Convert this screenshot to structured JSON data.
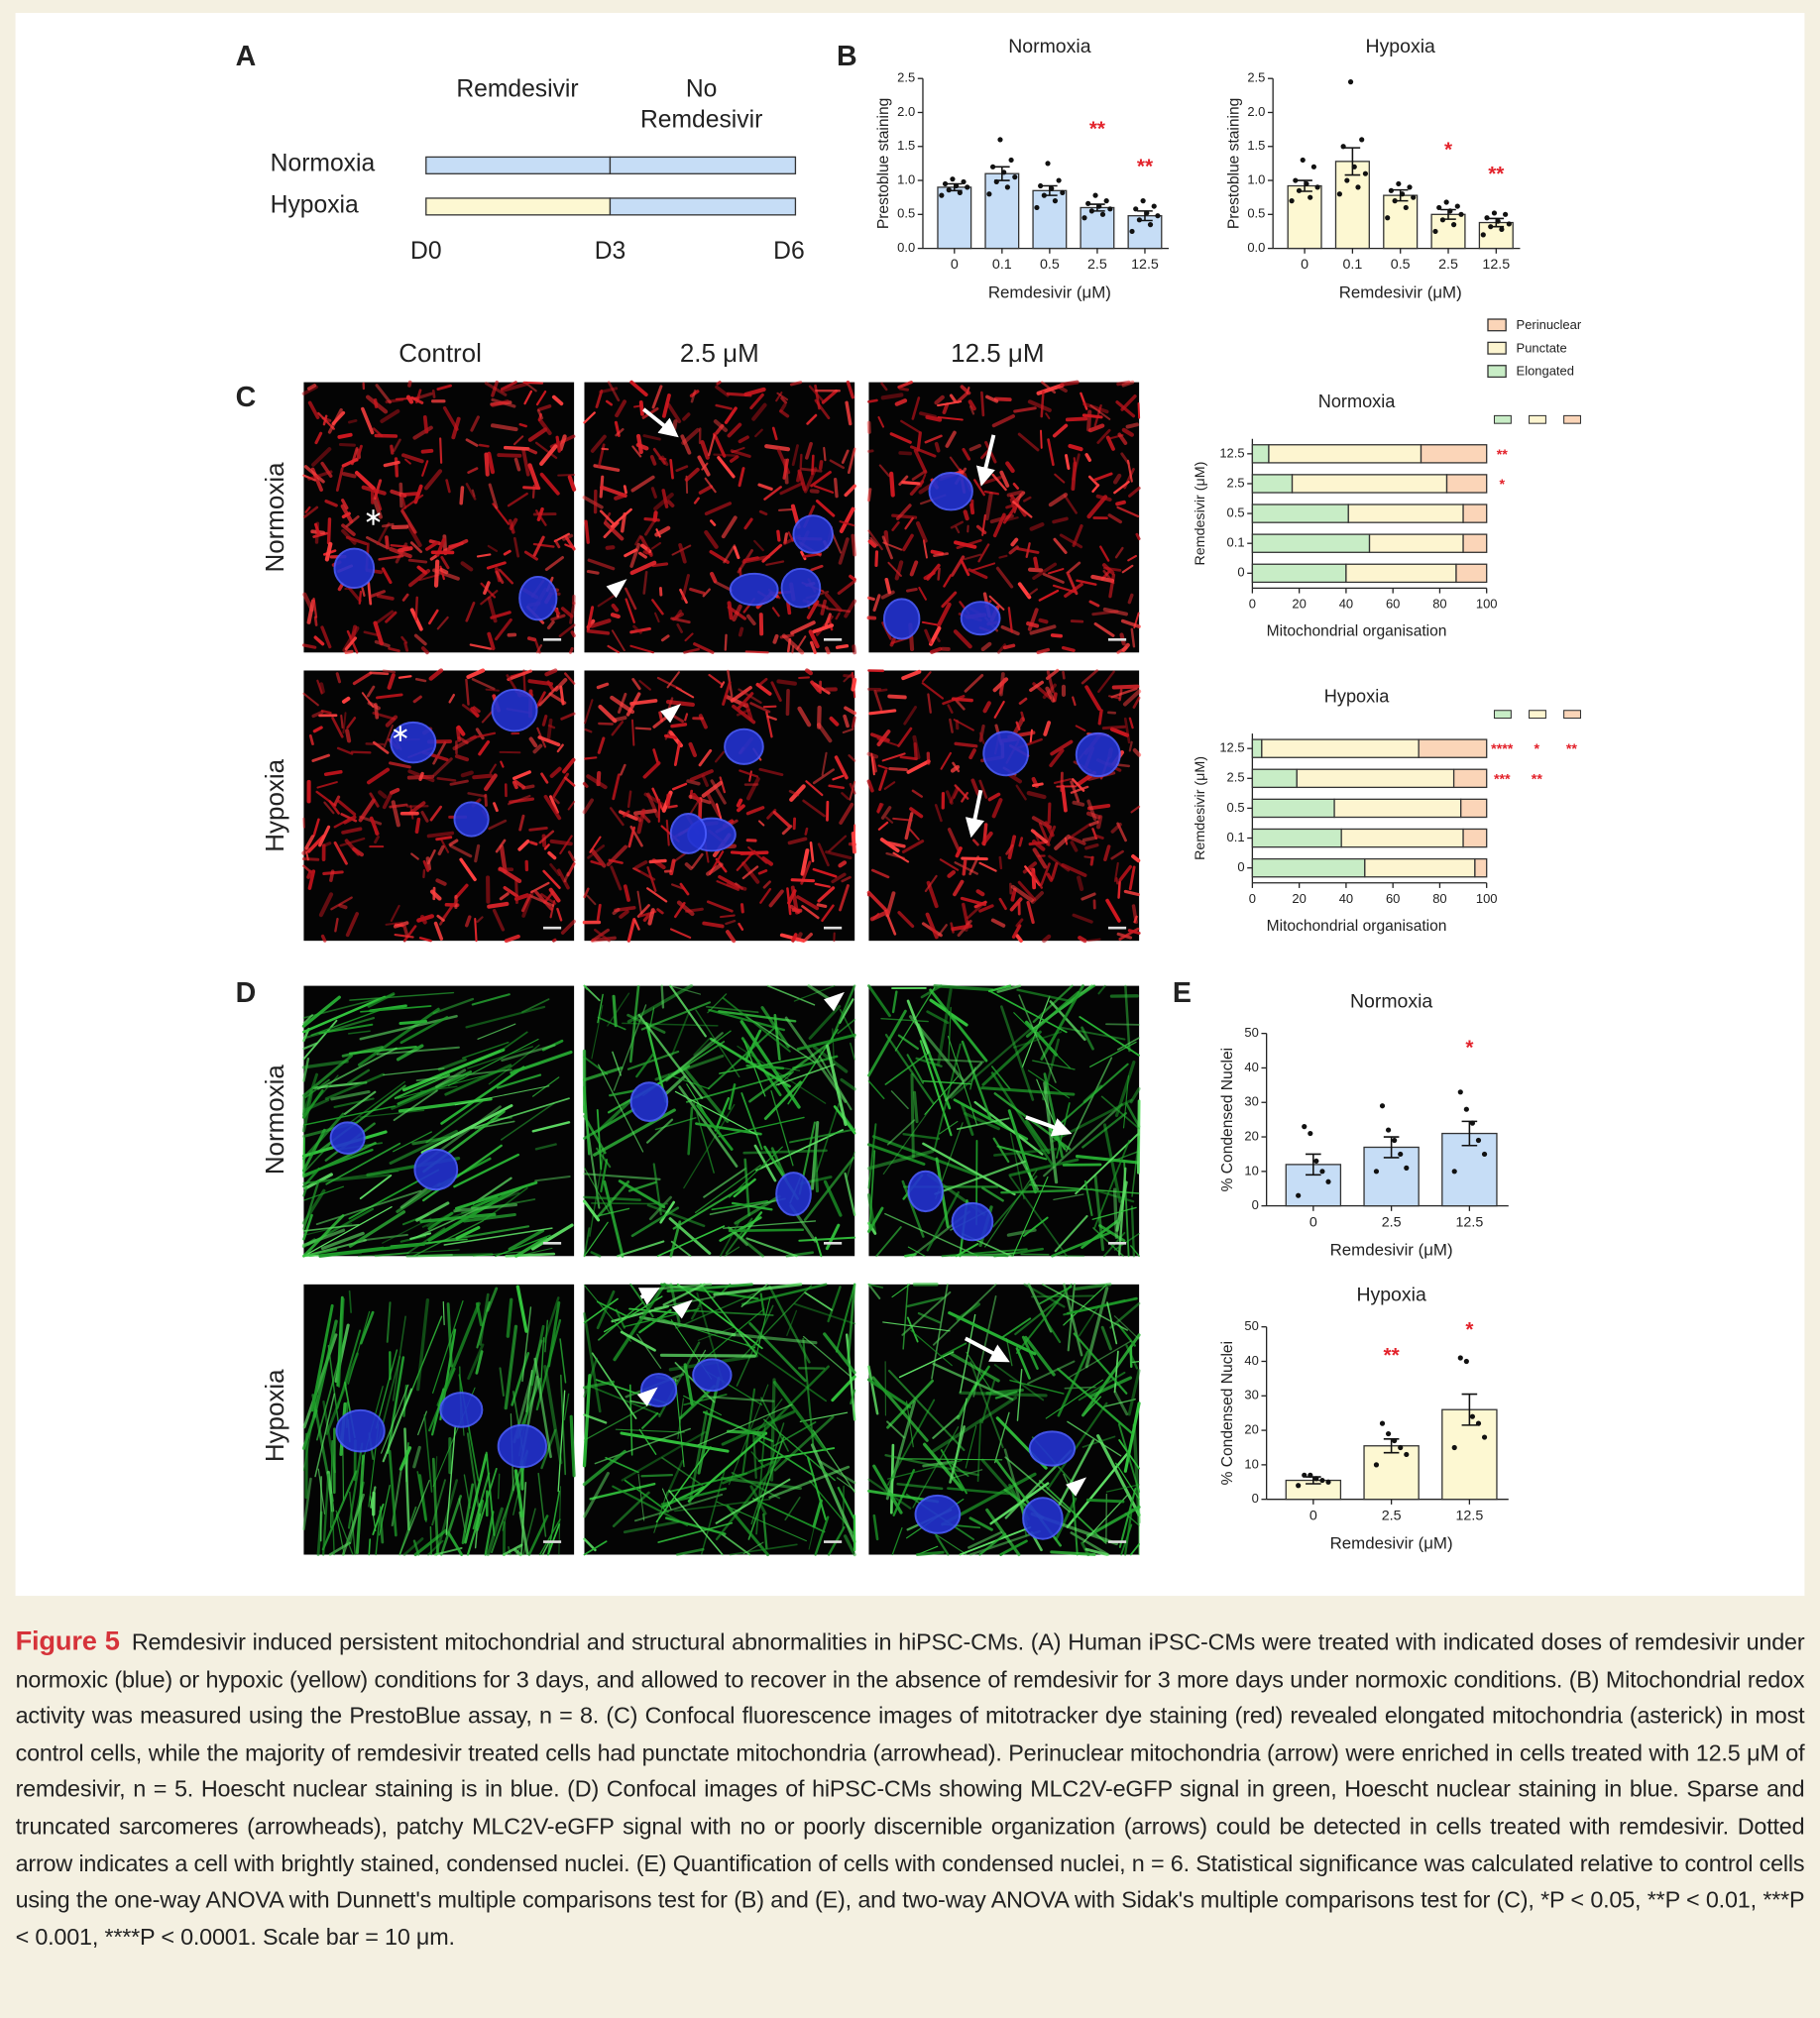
{
  "panel_labels": [
    "A",
    "B",
    "C",
    "D",
    "E"
  ],
  "timeline": {
    "treatment": "Remdesivir",
    "no_treatment": [
      "No",
      "Remdesivir"
    ],
    "conditions": [
      "Normoxia",
      "Hypoxia"
    ],
    "days": [
      "D0",
      "D3",
      "D6"
    ]
  },
  "micrographs": {
    "columns": [
      "Control",
      "2.5 μM",
      "12.5 μM"
    ],
    "rows": [
      "Normoxia",
      "Hypoxia"
    ]
  },
  "chart_data": [
    {
      "type": "bar",
      "title": "Normoxia",
      "categories": [
        "0",
        "0.1",
        "0.5",
        "2.5",
        "12.5"
      ],
      "values": [
        0.9,
        1.1,
        0.85,
        0.6,
        0.48
      ],
      "errors": [
        0.05,
        0.1,
        0.07,
        0.05,
        0.07
      ],
      "points": [
        [
          0.78,
          0.82,
          0.86,
          0.9,
          0.92,
          0.95,
          0.98,
          1.02
        ],
        [
          0.8,
          0.9,
          0.98,
          1.05,
          1.12,
          1.2,
          1.3,
          1.6
        ],
        [
          0.6,
          0.7,
          0.78,
          0.82,
          0.88,
          0.92,
          1.0,
          1.25
        ],
        [
          0.45,
          0.5,
          0.55,
          0.58,
          0.62,
          0.66,
          0.7,
          0.78
        ],
        [
          0.25,
          0.35,
          0.42,
          0.48,
          0.52,
          0.58,
          0.62,
          0.7
        ]
      ],
      "annotations": [
        null,
        null,
        null,
        "**",
        "**"
      ],
      "color": "#c6ddf6",
      "point_color": "#111111",
      "annotation_color": "#e3222b",
      "ylim": [
        0,
        2.5
      ],
      "yticks": [
        {
          "value": 0,
          "label": "0.0"
        },
        0.5,
        {
          "value": 1,
          "label": "1.0"
        },
        1.5,
        {
          "value": 2,
          "label": "2.0"
        },
        2.5
      ],
      "xlabel": "Remdesivir (μM)",
      "ylabel": "Prestoblue staining"
    },
    {
      "type": "bar",
      "title": "Hypoxia",
      "categories": [
        "0",
        "0.1",
        "0.5",
        "2.5",
        "12.5"
      ],
      "values": [
        0.92,
        1.28,
        0.78,
        0.5,
        0.38
      ],
      "errors": [
        0.08,
        0.2,
        0.08,
        0.07,
        0.06
      ],
      "points": [
        [
          0.7,
          0.75,
          0.85,
          0.9,
          0.95,
          1.0,
          1.2,
          1.3
        ],
        [
          0.8,
          0.9,
          1.0,
          1.1,
          1.2,
          1.5,
          1.6,
          2.45
        ],
        [
          0.45,
          0.6,
          0.7,
          0.75,
          0.8,
          0.85,
          0.9,
          0.95
        ],
        [
          0.25,
          0.35,
          0.42,
          0.5,
          0.55,
          0.6,
          0.62,
          0.68
        ],
        [
          0.2,
          0.28,
          0.32,
          0.36,
          0.4,
          0.45,
          0.5,
          0.52
        ]
      ],
      "annotations": [
        null,
        null,
        null,
        "*",
        "**"
      ],
      "color": "#fdf8d2",
      "point_color": "#111111",
      "annotation_color": "#e3222b",
      "ylim": [
        0,
        2.5
      ],
      "yticks": [
        {
          "value": 0,
          "label": "0.0"
        },
        0.5,
        {
          "value": 1,
          "label": "1.0"
        },
        1.5,
        {
          "value": 2,
          "label": "2.0"
        },
        2.5
      ],
      "xlabel": "Remdesivir (μM)",
      "ylabel": "Prestoblue staining"
    },
    {
      "type": "stacked_bar",
      "orientation": "horizontal",
      "title": "Normoxia",
      "categories": [
        "0",
        "0.1",
        "0.5",
        "2.5",
        "12.5"
      ],
      "series": [
        {
          "name": "Elongated",
          "color": "#c8edc6",
          "values": [
            40,
            50,
            41,
            17,
            7
          ],
          "annotations": [
            null,
            null,
            null,
            "*",
            "**"
          ]
        },
        {
          "name": "Punctate",
          "color": "#fdf5d0",
          "values": [
            47,
            40,
            49,
            66,
            65
          ]
        },
        {
          "name": "Perinuclear",
          "color": "#fbd5b8",
          "values": [
            13,
            10,
            10,
            17,
            28
          ]
        }
      ],
      "annotation_color": "#e3222b",
      "legend": "top-right",
      "xlim": [
        0,
        100
      ],
      "xticks": [
        0,
        20,
        40,
        60,
        80,
        100
      ],
      "xlabel": "Mitochondrial organisation",
      "ylabel": "Remdesivir (μM)"
    },
    {
      "type": "stacked_bar",
      "orientation": "horizontal",
      "title": "Hypoxia",
      "categories": [
        "0",
        "0.1",
        "0.5",
        "2.5",
        "12.5"
      ],
      "series": [
        {
          "color": "#c8edc6",
          "values": [
            48,
            38,
            35,
            19,
            4
          ],
          "annotations": [
            null,
            null,
            null,
            "***",
            "****"
          ]
        },
        {
          "color": "#fdf5d0",
          "values": [
            47,
            52,
            54,
            67,
            67
          ],
          "annotations": [
            null,
            null,
            null,
            "**",
            "*"
          ]
        },
        {
          "color": "#fbd5b8",
          "values": [
            5,
            10,
            11,
            14,
            29
          ],
          "annotations": [
            null,
            null,
            null,
            null,
            "**"
          ]
        }
      ],
      "annotation_color": "#e3222b",
      "xlim": [
        0,
        100
      ],
      "xticks": [
        0,
        20,
        40,
        60,
        80,
        100
      ],
      "xlabel": "Mitochondrial organisation",
      "ylabel": "Remdesivir (μM)"
    },
    {
      "type": "bar",
      "title": "Normoxia",
      "categories": [
        "0",
        "2.5",
        "12.5"
      ],
      "values": [
        12,
        17,
        21
      ],
      "errors": [
        3,
        3,
        3.5
      ],
      "points": [
        [
          3,
          7,
          10,
          13,
          21,
          23
        ],
        [
          10,
          11,
          15,
          19,
          22,
          29
        ],
        [
          10,
          15,
          19,
          24,
          28,
          33
        ]
      ],
      "annotations": [
        null,
        null,
        "*"
      ],
      "color": "#c6ddf6",
      "point_color": "#111111",
      "annotation_color": "#e3222b",
      "ylim": [
        0,
        50
      ],
      "yticks": [
        0,
        10,
        20,
        30,
        40,
        50
      ],
      "xlabel": "Remdesivir (μM)",
      "ylabel": "% Condensed Nuclei"
    },
    {
      "type": "bar",
      "title": "Hypoxia",
      "categories": [
        "0",
        "2.5",
        "12.5"
      ],
      "values": [
        5.5,
        15.5,
        26
      ],
      "errors": [
        1,
        2,
        4.5
      ],
      "points": [
        [
          4,
          5,
          5.5,
          6,
          7,
          7
        ],
        [
          10,
          13,
          15,
          17,
          19,
          22
        ],
        [
          15,
          18,
          22,
          24,
          40,
          41
        ]
      ],
      "annotations": [
        null,
        "**",
        "*"
      ],
      "color": "#fdf8d2",
      "point_color": "#111111",
      "annotation_color": "#e3222b",
      "ylim": [
        0,
        50
      ],
      "yticks": [
        0,
        10,
        20,
        30,
        40,
        50
      ],
      "xlabel": "Remdesivir (μM)",
      "ylabel": "% Condensed Nuclei"
    }
  ],
  "caption": {
    "label": "Figure 5",
    "text": "Remdesivir induced persistent mitochondrial and structural abnormalities in hiPSC-CMs. (A) Human iPSC-CMs were treated with indicated doses of remdesivir under normoxic (blue) or hypoxic (yellow) conditions for 3 days, and allowed to recover in the absence of remdesivir for 3 more days under normoxic conditions. (B) Mitochondrial redox activity was measured using the PrestoBlue assay, n = 8. (C) Confocal fluorescence images of mitotracker dye staining (red) revealed elongated mitochondria (asterick) in most control cells, while the majority of remdesivir treated cells had punctate mitochondria (arrowhead). Perinuclear mitochondria (arrow) were enriched in cells treated with 12.5 μM of remdesivir, n = 5. Hoescht nuclear staining is in blue. (D) Confocal images of hiPSC-CMs showing MLC2V-eGFP signal in green, Hoescht nuclear staining in blue. Sparse and truncated sarcomeres (arrowheads), patchy MLC2V-eGFP signal with no or poorly discernible organization (arrows) could be detected in cells treated with remdesivir. Dotted arrow indicates a cell with brightly stained, condensed nuclei. (E) Quantification of cells with condensed nuclei, n = 6. Statistical significance was calculated relative to control cells using the one-way ANOVA with Dunnett's multiple comparisons test for (B) and (E), and two-way ANOVA with Sidak's multiple comparisons test for (C), *P < 0.05, **P < 0.01, ***P < 0.001, ****P < 0.0001. Scale bar = 10 μm."
  }
}
